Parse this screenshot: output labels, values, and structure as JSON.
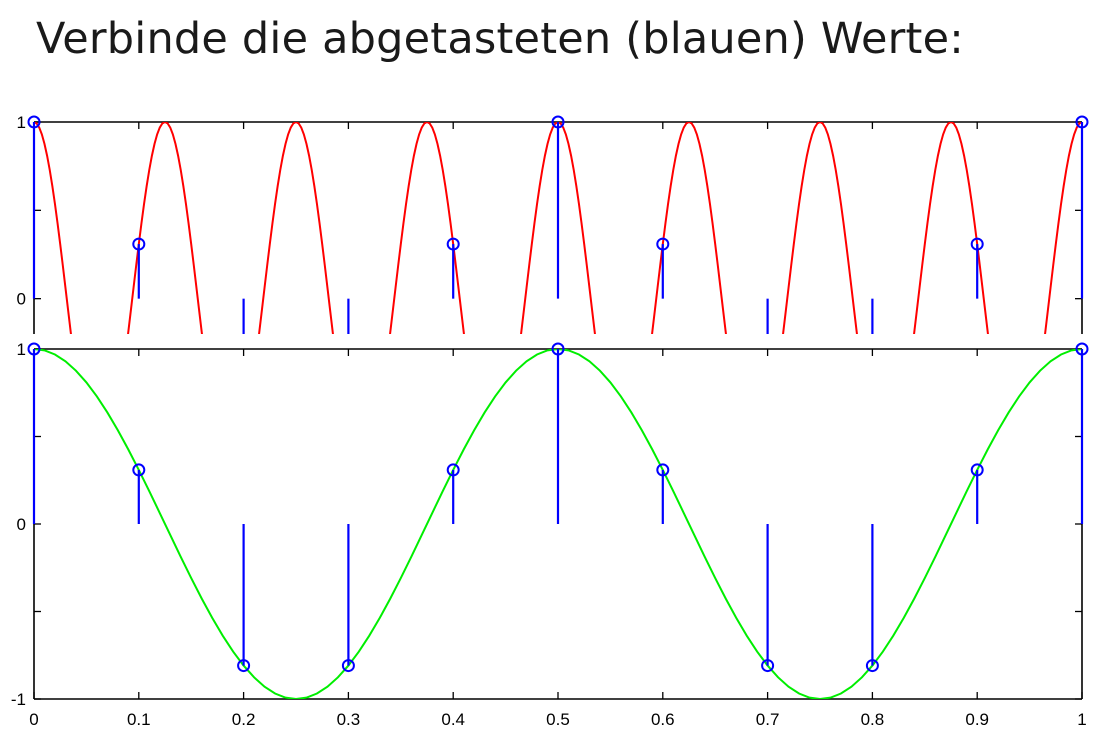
{
  "title": "Verbinde die abgetasteten (blauen) Werte:",
  "colors": {
    "samples": "#0000ff",
    "aliased_signal": "#ff0000",
    "original_signal": "#00ee00",
    "axes": "#000000"
  },
  "chart_data": [
    {
      "type": "line",
      "description": "top panel: aliased high-frequency cosine (red) through sampled stems (blue), y-range clipped",
      "xlim": [
        0,
        1
      ],
      "ylim": [
        -0.2,
        1
      ],
      "xticks": [
        0,
        0.1,
        0.2,
        0.3,
        0.4,
        0.5,
        0.6,
        0.7,
        0.8,
        0.9,
        1
      ],
      "yticks": [
        0,
        0.5,
        1
      ],
      "ytick_labels": [
        "0",
        "",
        "1"
      ],
      "series": [
        {
          "style": "stem",
          "x": [
            0,
            0.1,
            0.2,
            0.3,
            0.4,
            0.5,
            0.6,
            0.7,
            0.8,
            0.9,
            1
          ],
          "y": [
            1,
            0.309,
            -0.809,
            -0.809,
            0.309,
            1,
            0.309,
            -0.809,
            -0.809,
            0.309,
            1
          ]
        },
        {
          "style": "line",
          "function": "cos(2*pi*8*x)",
          "x_range": [
            0,
            1
          ]
        }
      ]
    },
    {
      "type": "line",
      "description": "bottom panel: original cosine (green) with sampled stems (blue)",
      "xlim": [
        0,
        1
      ],
      "ylim": [
        -1,
        1
      ],
      "xticks": [
        0,
        0.1,
        0.2,
        0.3,
        0.4,
        0.5,
        0.6,
        0.7,
        0.8,
        0.9,
        1
      ],
      "xtick_labels": [
        "0",
        "0.1",
        "0.2",
        "0.3",
        "0.4",
        "0.5",
        "0.6",
        "0.7",
        "0.8",
        "0.9",
        "1"
      ],
      "yticks": [
        -1,
        -0.5,
        0,
        0.5,
        1
      ],
      "ytick_labels": [
        "-1",
        "",
        "0",
        "",
        "1"
      ],
      "series": [
        {
          "style": "stem",
          "x": [
            0,
            0.1,
            0.2,
            0.3,
            0.4,
            0.5,
            0.6,
            0.7,
            0.8,
            0.9,
            1
          ],
          "y": [
            1,
            0.309,
            -0.809,
            -0.809,
            0.309,
            1,
            0.309,
            -0.809,
            -0.809,
            0.309,
            1
          ]
        },
        {
          "style": "line",
          "function": "cos(2*pi*2*x)",
          "x_range": [
            0,
            1
          ]
        }
      ]
    }
  ]
}
